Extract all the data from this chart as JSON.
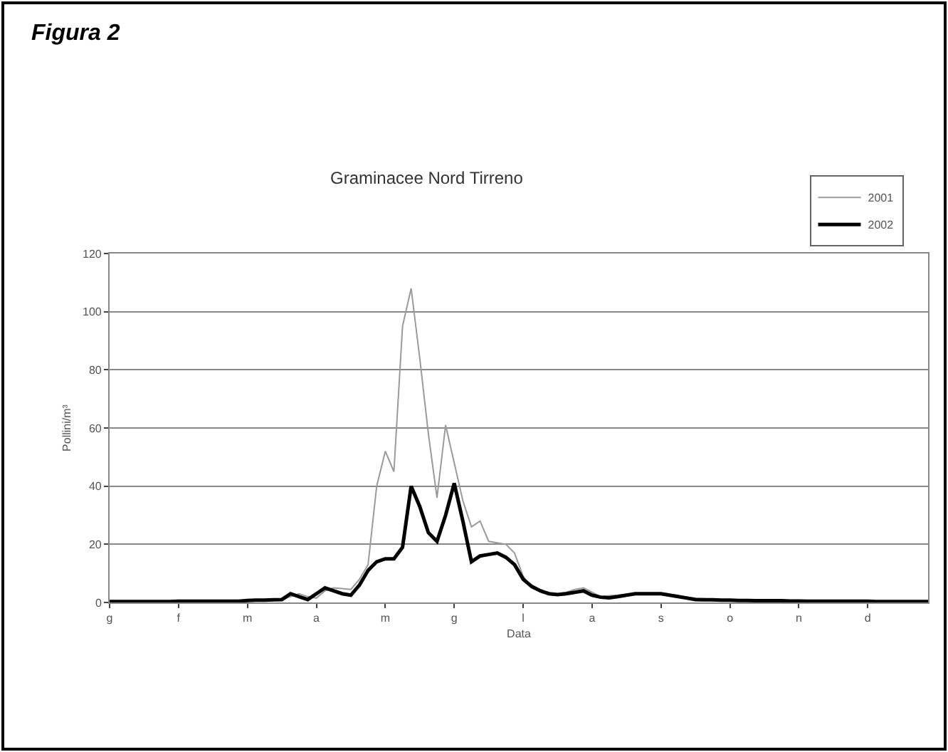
{
  "chart_data": {
    "type": "line",
    "title": "Graminacee Nord Tirreno",
    "xlabel": "Data",
    "ylabel": "Pollini/m³",
    "annotations": [
      "Figura 2"
    ],
    "categories": [
      "g",
      null,
      null,
      null,
      null,
      null,
      null,
      null,
      "f",
      null,
      null,
      null,
      null,
      null,
      null,
      null,
      "m",
      null,
      null,
      null,
      null,
      null,
      null,
      null,
      "a",
      null,
      null,
      null,
      null,
      null,
      null,
      null,
      "m",
      null,
      null,
      null,
      null,
      null,
      null,
      null,
      "g",
      null,
      null,
      null,
      null,
      null,
      null,
      null,
      "l",
      null,
      null,
      null,
      null,
      null,
      null,
      null,
      "a",
      null,
      null,
      null,
      null,
      null,
      null,
      null,
      "s",
      null,
      null,
      null,
      null,
      null,
      null,
      null,
      "o",
      null,
      null,
      null,
      null,
      null,
      null,
      null,
      "n",
      null,
      null,
      null,
      null,
      null,
      null,
      null,
      "d",
      null,
      null,
      null,
      null,
      null,
      null,
      null
    ],
    "series": [
      {
        "name": "2001",
        "color": "#9a9a9a",
        "values": [
          0.5,
          0.5,
          0.5,
          0.5,
          0.5,
          0.5,
          0.5,
          0.5,
          0.5,
          0.5,
          0.5,
          0.5,
          0.5,
          0.5,
          0.5,
          0.5,
          0.7,
          0.8,
          0.8,
          0.9,
          1,
          2,
          3,
          2,
          1.5,
          4,
          5,
          4.8,
          4.5,
          8,
          13,
          40,
          52,
          45,
          95,
          108,
          84,
          58,
          36,
          61,
          48,
          35,
          26,
          28,
          21,
          20.5,
          20,
          17,
          9,
          5,
          4,
          3,
          3,
          3.5,
          4.5,
          5,
          3.5,
          2,
          2.3,
          2.5,
          2.8,
          3,
          3,
          3,
          3,
          2.7,
          2.3,
          1.9,
          1.5,
          1.3,
          1.1,
          0.9,
          0.8,
          0.7,
          0.6,
          0.5,
          0.5,
          0.5,
          0.5,
          0.5,
          0.5,
          0.5,
          0.5,
          0.5,
          0.5,
          0.5,
          0.5,
          0.5,
          0.4,
          0.4,
          0.4,
          0.4,
          0.3,
          0.3,
          0.3,
          0.3
        ]
      },
      {
        "name": "2002",
        "color": "#000000",
        "values": [
          0.3,
          0.3,
          0.3,
          0.3,
          0.3,
          0.3,
          0.3,
          0.3,
          0.4,
          0.4,
          0.4,
          0.4,
          0.4,
          0.4,
          0.4,
          0.4,
          0.7,
          0.8,
          0.8,
          0.9,
          1,
          3,
          2,
          1,
          3,
          5,
          4,
          3,
          2.5,
          6,
          11,
          14,
          15,
          15,
          19,
          40,
          33,
          24,
          21,
          30,
          41,
          28,
          14,
          16,
          16.5,
          17,
          15.5,
          13,
          8,
          5.5,
          4,
          3,
          2.7,
          3,
          3.5,
          4,
          2.5,
          1.8,
          1.6,
          2,
          2.5,
          3,
          3,
          3,
          3,
          2.5,
          2,
          1.5,
          1,
          0.9,
          0.9,
          0.8,
          0.8,
          0.7,
          0.7,
          0.6,
          0.6,
          0.6,
          0.6,
          0.5,
          0.5,
          0.4,
          0.4,
          0.4,
          0.4,
          0.4,
          0.4,
          0.4,
          0.4,
          0.3,
          0.3,
          0.3,
          0.3,
          0.3,
          0.3,
          0.3
        ]
      }
    ],
    "ylim": [
      0,
      120
    ],
    "yticks": [
      0,
      20,
      40,
      60,
      80,
      100,
      120
    ],
    "grid": "y",
    "legend": "top right",
    "marker": "none",
    "line_style": "solid"
  }
}
